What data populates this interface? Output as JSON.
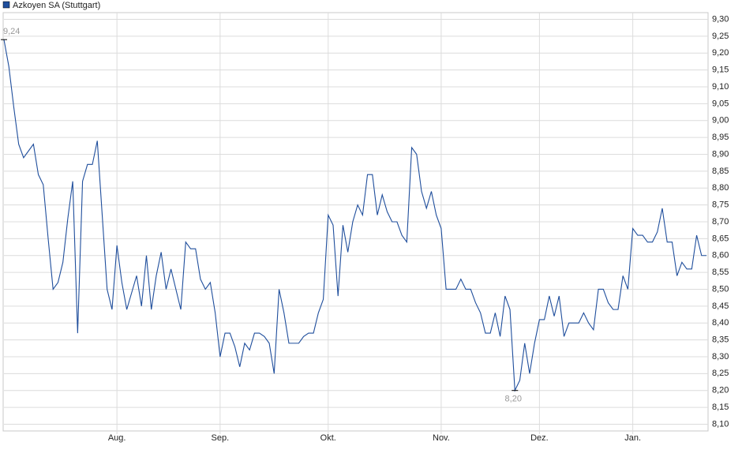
{
  "chart_data": {
    "type": "line",
    "categories": [
      null,
      null,
      null,
      null,
      null,
      null,
      null,
      null,
      null,
      null,
      null,
      null,
      null,
      null,
      null,
      null,
      null,
      null,
      null,
      null,
      null,
      null,
      null,
      "Aug.",
      null,
      null,
      null,
      null,
      null,
      null,
      null,
      null,
      null,
      null,
      null,
      null,
      null,
      null,
      null,
      null,
      null,
      null,
      null,
      null,
      "Sep.",
      null,
      null,
      null,
      null,
      null,
      null,
      null,
      null,
      null,
      null,
      null,
      null,
      null,
      null,
      null,
      null,
      null,
      null,
      null,
      null,
      null,
      "Okt.",
      null,
      null,
      null,
      null,
      null,
      null,
      null,
      null,
      null,
      null,
      null,
      null,
      null,
      null,
      null,
      null,
      null,
      null,
      null,
      null,
      null,
      null,
      "Nov.",
      null,
      null,
      null,
      null,
      null,
      null,
      null,
      null,
      null,
      null,
      null,
      null,
      null,
      null,
      null,
      null,
      null,
      null,
      null,
      "Dez.",
      null,
      null,
      null,
      null,
      null,
      null,
      null,
      null,
      null,
      null,
      null,
      null,
      null,
      null,
      null,
      null,
      null,
      null,
      "Jan.",
      null,
      null,
      null,
      null,
      null,
      null,
      null,
      null,
      null,
      null,
      null,
      null,
      null,
      null,
      null
    ],
    "series": [
      {
        "name": "Azkoyen SA (Stuttgart)",
        "color": "#1f4e9c",
        "values": [
          9.24,
          9.16,
          9.04,
          8.93,
          8.89,
          8.91,
          8.93,
          8.84,
          8.81,
          8.65,
          8.5,
          8.52,
          8.58,
          8.71,
          8.82,
          8.37,
          8.82,
          8.87,
          8.87,
          8.94,
          8.72,
          8.5,
          8.44,
          8.63,
          8.52,
          8.44,
          8.49,
          8.54,
          8.45,
          8.6,
          8.44,
          8.54,
          8.61,
          8.5,
          8.56,
          8.5,
          8.44,
          8.64,
          8.62,
          8.62,
          8.53,
          8.5,
          8.52,
          8.43,
          8.3,
          8.37,
          8.37,
          8.33,
          8.27,
          8.34,
          8.32,
          8.37,
          8.37,
          8.36,
          8.34,
          8.25,
          8.5,
          8.43,
          8.34,
          8.34,
          8.34,
          8.36,
          8.37,
          8.37,
          8.43,
          8.47,
          8.72,
          8.69,
          8.48,
          8.69,
          8.61,
          8.7,
          8.75,
          8.72,
          8.84,
          8.84,
          8.72,
          8.78,
          8.73,
          8.7,
          8.7,
          8.66,
          8.64,
          8.92,
          8.9,
          8.79,
          8.74,
          8.79,
          8.72,
          8.68,
          8.5,
          8.5,
          8.5,
          8.53,
          8.5,
          8.5,
          8.46,
          8.43,
          8.37,
          8.37,
          8.43,
          8.36,
          8.48,
          8.44,
          8.2,
          8.23,
          8.34,
          8.25,
          8.34,
          8.41,
          8.41,
          8.48,
          8.42,
          8.48,
          8.36,
          8.4,
          8.4,
          8.4,
          8.43,
          8.4,
          8.38,
          8.5,
          8.5,
          8.46,
          8.44,
          8.44,
          8.54,
          8.5,
          8.68,
          8.66,
          8.66,
          8.64,
          8.64,
          8.67,
          8.74,
          8.64,
          8.64,
          8.54,
          8.58,
          8.56,
          8.56,
          8.66,
          8.6,
          8.6
        ],
        "value_labels": [
          "9,24",
          null,
          null,
          null,
          null,
          null,
          null,
          null,
          null,
          null,
          null,
          null,
          null,
          null,
          null,
          null,
          null,
          null,
          null,
          null,
          null,
          null,
          null,
          null,
          null,
          null,
          null,
          null,
          null,
          null,
          null,
          null,
          null,
          null,
          null,
          null,
          null,
          null,
          null,
          null,
          null,
          null,
          null,
          null,
          null,
          null,
          null,
          null,
          null,
          null,
          null,
          null,
          null,
          null,
          null,
          null,
          null,
          null,
          null,
          null,
          null,
          null,
          null,
          null,
          null,
          null,
          null,
          null,
          null,
          null,
          null,
          null,
          null,
          null,
          null,
          null,
          null,
          null,
          null,
          null,
          null,
          null,
          null,
          null,
          null,
          null,
          null,
          null,
          null,
          null,
          null,
          null,
          null,
          null,
          null,
          null,
          null,
          null,
          null,
          null,
          null,
          null,
          null,
          null,
          "8,20",
          null,
          null,
          null,
          null,
          null,
          null,
          null,
          null,
          null,
          null,
          null,
          null,
          null,
          null,
          null,
          null,
          null,
          null,
          null,
          null,
          null,
          null,
          null,
          null,
          null,
          null,
          null,
          null,
          null,
          null,
          null,
          null,
          null,
          null,
          null,
          null,
          null,
          null
        ]
      }
    ],
    "ylim": [
      8.08,
      9.32
    ],
    "yticks": [
      {
        "value": 8.1,
        "label": "8,10"
      },
      {
        "value": 8.15,
        "label": "8,15"
      },
      {
        "value": 8.2,
        "label": "8,20"
      },
      {
        "value": 8.25,
        "label": "8,25"
      },
      {
        "value": 8.3,
        "label": "8,30"
      },
      {
        "value": 8.35,
        "label": "8,35"
      },
      {
        "value": 8.4,
        "label": "8,40"
      },
      {
        "value": 8.45,
        "label": "8,45"
      },
      {
        "value": 8.5,
        "label": "8,50"
      },
      {
        "value": 8.55,
        "label": "8,55"
      },
      {
        "value": 8.6,
        "label": "8,60"
      },
      {
        "value": 8.65,
        "label": "8,65"
      },
      {
        "value": 8.7,
        "label": "8,70"
      },
      {
        "value": 8.75,
        "label": "8,75"
      },
      {
        "value": 8.8,
        "label": "8,80"
      },
      {
        "value": 8.85,
        "label": "8,85"
      },
      {
        "value": 8.9,
        "label": "8,90"
      },
      {
        "value": 8.95,
        "label": "8,95"
      },
      {
        "value": 9.0,
        "label": "9,00"
      },
      {
        "value": 9.05,
        "label": "9,05"
      },
      {
        "value": 9.1,
        "label": "9,10"
      },
      {
        "value": 9.15,
        "label": "9,15"
      },
      {
        "value": 9.2,
        "label": "9,20"
      },
      {
        "value": 9.25,
        "label": "9,25"
      },
      {
        "value": 9.3,
        "label": "9,30"
      }
    ],
    "grid": true
  }
}
